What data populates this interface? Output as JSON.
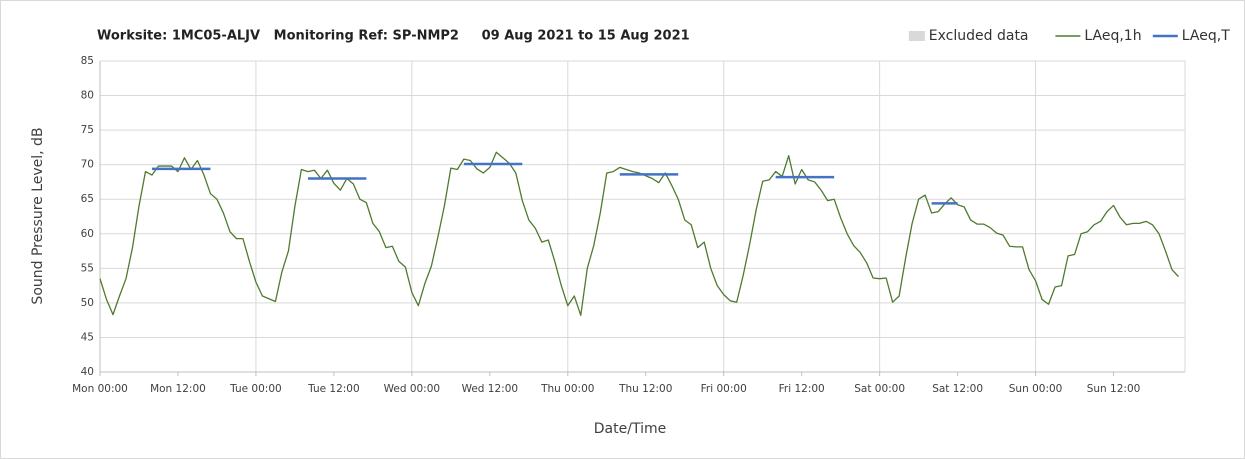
{
  "chart_data": {
    "type": "line",
    "title": "Worksite: 1MC05-ALJV   Monitoring Ref: SP-NMP2     09 Aug 2021 to 15 Aug 2021",
    "x_label": "Date/Time",
    "y_label": "Sound Pressure Level, dB",
    "legend": "top-right",
    "grid": true,
    "xlim": [
      0,
      167
    ],
    "ylim": [
      40,
      85
    ],
    "yticks": [
      40,
      45,
      50,
      55,
      60,
      65,
      70,
      75,
      80,
      85
    ],
    "xticks": [
      {
        "value": 0,
        "label": "Mon 00:00"
      },
      {
        "value": 12,
        "label": "Mon 12:00"
      },
      {
        "value": 24,
        "label": "Tue 00:00"
      },
      {
        "value": 36,
        "label": "Tue 12:00"
      },
      {
        "value": 48,
        "label": "Wed 00:00"
      },
      {
        "value": 60,
        "label": "Wed 12:00"
      },
      {
        "value": 72,
        "label": "Thu 00:00"
      },
      {
        "value": 84,
        "label": "Thu 12:00"
      },
      {
        "value": 96,
        "label": "Fri 00:00"
      },
      {
        "value": 108,
        "label": "Fri 12:00"
      },
      {
        "value": 120,
        "label": "Sat 00:00"
      },
      {
        "value": 132,
        "label": "Sat 12:00"
      },
      {
        "value": 144,
        "label": "Sun 00:00"
      },
      {
        "value": 156,
        "label": "Sun 12:00"
      }
    ],
    "x": [
      0,
      1,
      2,
      3,
      4,
      5,
      6,
      7,
      8,
      9,
      10,
      11,
      12,
      13,
      14,
      15,
      16,
      17,
      18,
      19,
      20,
      21,
      22,
      23,
      24,
      25,
      26,
      27,
      28,
      29,
      30,
      31,
      32,
      33,
      34,
      35,
      36,
      37,
      38,
      39,
      40,
      41,
      42,
      43,
      44,
      45,
      46,
      47,
      48,
      49,
      50,
      51,
      52,
      53,
      54,
      55,
      56,
      57,
      58,
      59,
      60,
      61,
      62,
      63,
      64,
      65,
      66,
      67,
      68,
      69,
      70,
      71,
      72,
      73,
      74,
      75,
      76,
      77,
      78,
      79,
      80,
      81,
      82,
      83,
      84,
      85,
      86,
      87,
      88,
      89,
      90,
      91,
      92,
      93,
      94,
      95,
      96,
      97,
      98,
      99,
      100,
      101,
      102,
      103,
      104,
      105,
      106,
      107,
      108,
      109,
      110,
      111,
      112,
      113,
      114,
      115,
      116,
      117,
      118,
      119,
      120,
      121,
      122,
      123,
      124,
      125,
      126,
      127,
      128,
      129,
      130,
      131,
      132,
      133,
      134,
      135,
      136,
      137,
      138,
      139,
      140,
      141,
      142,
      143,
      144,
      145,
      146,
      147,
      148,
      149,
      150,
      151,
      152,
      153,
      154,
      155,
      156,
      157,
      158,
      159,
      160,
      161,
      162,
      163,
      164,
      165,
      166
    ],
    "series": [
      {
        "name": "Excluded data",
        "color": "#d9d9d9"
      },
      {
        "name": "LAeq,1h",
        "color": "#4f7a2f",
        "values": [
          53.5,
          50.5,
          48.3,
          51,
          53.5,
          58,
          64,
          69,
          68.5,
          69.8,
          69.8,
          69.8,
          69,
          71,
          69.3,
          70.6,
          68.5,
          65.8,
          65,
          63,
          60.3,
          59.3,
          59.3,
          56,
          53,
          51,
          50.6,
          50.2,
          54.5,
          57.5,
          64,
          69.3,
          69,
          69.2,
          68,
          69.2,
          67.3,
          66.3,
          68,
          67.2,
          65,
          64.5,
          61.5,
          60.3,
          58,
          58.2,
          56,
          55.2,
          51.5,
          49.6,
          52.8,
          55.3,
          59.5,
          64,
          69.5,
          69.3,
          70.8,
          70.6,
          69.4,
          68.8,
          69.6,
          71.8,
          71,
          70.2,
          68.8,
          64.8,
          62,
          60.8,
          58.8,
          59.1,
          56,
          52.5,
          49.6,
          51,
          48.2,
          55,
          58.3,
          63,
          68.8,
          69,
          69.6,
          69.3,
          69,
          68.8,
          68.4,
          68,
          67.4,
          68.8,
          67,
          65,
          62,
          61.3,
          58,
          58.8,
          55,
          52.5,
          51.2,
          50.3,
          50.1,
          54,
          58.5,
          63.5,
          67.6,
          67.8,
          69,
          68.3,
          71.3,
          67.2,
          69.3,
          67.8,
          67.5,
          66.3,
          64.8,
          65,
          62.3,
          60,
          58.3,
          57.3,
          55.8,
          53.6,
          53.5,
          53.6,
          50.1,
          51,
          56.5,
          61.5,
          65,
          65.6,
          63,
          63.2,
          64.3,
          65.2,
          64.2,
          63.9,
          62,
          61.4,
          61.4,
          60.9,
          60.1,
          59.8,
          58.2,
          58.1,
          58.1,
          54.8,
          53.2,
          50.5,
          49.8,
          52.3,
          52.5,
          56.8,
          57,
          60,
          60.3,
          61.3,
          61.8,
          63.2,
          64.1,
          62.4,
          61.3,
          61.5,
          61.5,
          61.8,
          61.3,
          60,
          57.5,
          54.8,
          53.8
        ]
      },
      {
        "name": "LAeq,T",
        "color": "#4472c4",
        "segments": [
          {
            "x": [
              8,
              17
            ],
            "value": 69.4
          },
          {
            "x": [
              32,
              41
            ],
            "value": 68
          },
          {
            "x": [
              56,
              65
            ],
            "value": 70.1
          },
          {
            "x": [
              80,
              89
            ],
            "value": 68.6
          },
          {
            "x": [
              104,
              113
            ],
            "value": 68.2
          },
          {
            "x": [
              128,
              132
            ],
            "value": 64.4
          }
        ]
      }
    ]
  }
}
